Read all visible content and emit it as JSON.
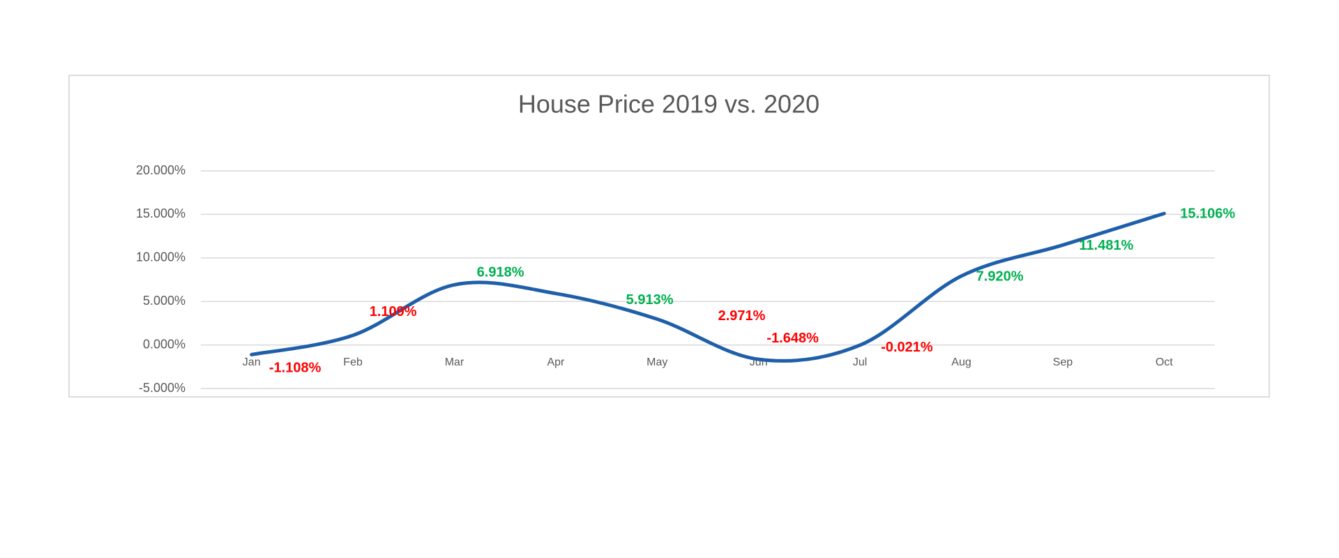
{
  "chart_data": {
    "type": "line",
    "title": "House Price 2019 vs. 2020",
    "categories": [
      "Jan",
      "Feb",
      "Mar",
      "Apr",
      "May",
      "Jun",
      "Jul",
      "Aug",
      "Sep",
      "Oct"
    ],
    "series": [
      {
        "color": "#1f5faa",
        "values": [
          -1.108,
          1.109,
          6.918,
          5.913,
          2.971,
          -1.648,
          -0.021,
          7.92,
          11.481,
          15.106
        ],
        "value_labels": [
          "-1.108%",
          "1.109%",
          "6.918%",
          "5.913%",
          "2.971%",
          "-1.648%",
          "-0.021%",
          "7.920%",
          "11.481%",
          "15.106%"
        ],
        "label_colors": [
          "#ff0000",
          "#ff0000",
          "#00b050",
          "#00b050",
          "#ff0000",
          "#ff0000",
          "#ff0000",
          "#00b050",
          "#00b050",
          "#00b050"
        ]
      }
    ],
    "ylim": [
      -5,
      20
    ],
    "yticks": [
      {
        "value": -5,
        "label": "-5.000%"
      },
      {
        "value": 0,
        "label": "0.000%"
      },
      {
        "value": 5,
        "label": "5.000%"
      },
      {
        "value": 10,
        "label": "10.000%"
      },
      {
        "value": 15,
        "label": "15.000%"
      },
      {
        "value": 20,
        "label": "20.000%"
      }
    ],
    "grid": true
  }
}
